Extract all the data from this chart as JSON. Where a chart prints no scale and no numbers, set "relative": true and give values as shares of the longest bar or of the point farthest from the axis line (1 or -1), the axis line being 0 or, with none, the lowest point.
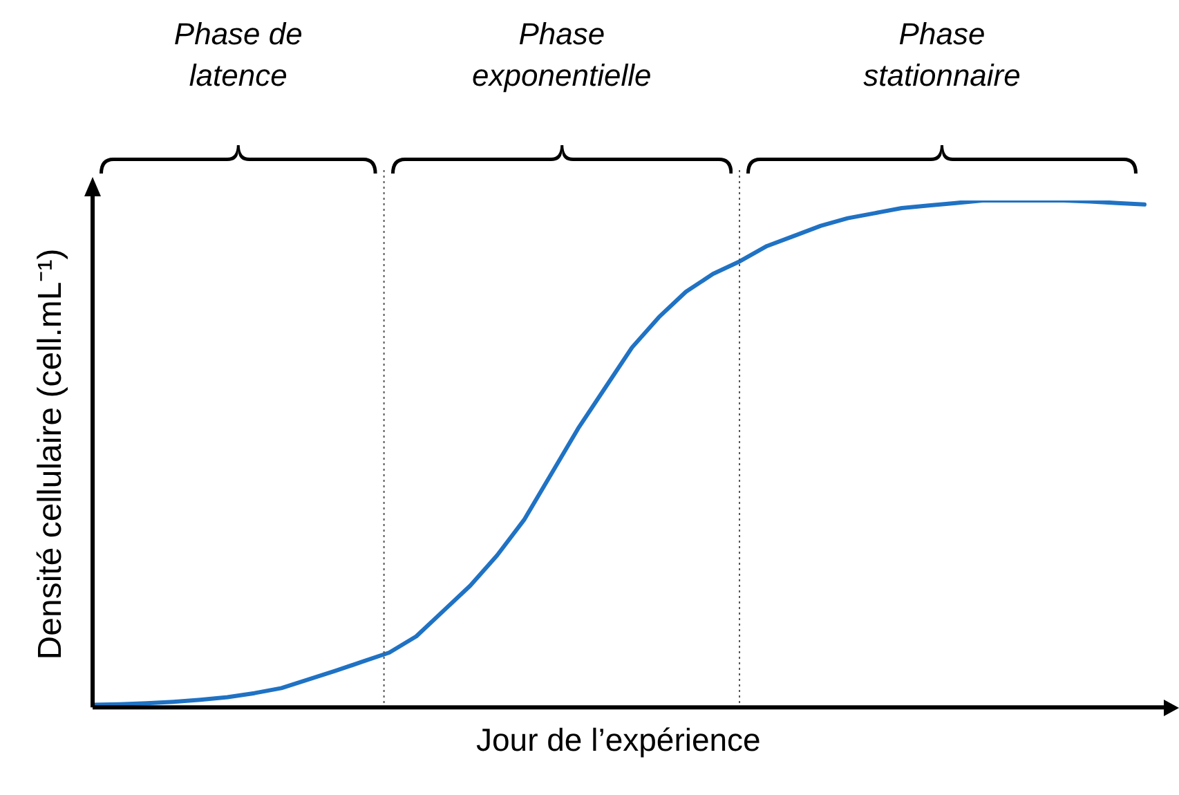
{
  "chart_data": {
    "type": "line",
    "relative": true,
    "xlabel": "Jour de l’expérience",
    "ylabel": "Densité cellulaire (cell.mL⁻¹)",
    "legend": false,
    "marker": "none",
    "categories": [
      null,
      null,
      null,
      null,
      null,
      null,
      null,
      null,
      null,
      null,
      null,
      null,
      null,
      null,
      null,
      null,
      null,
      null,
      null,
      null,
      null,
      null,
      null,
      null,
      null,
      null,
      null,
      null,
      null,
      null,
      null,
      null,
      null,
      null,
      null,
      null,
      null,
      null,
      null,
      null
    ],
    "series": [
      {
        "color": "#1f72c4",
        "values": [
          0.005,
          0.006,
          0.008,
          0.011,
          0.015,
          0.02,
          0.028,
          0.038,
          0.055,
          0.072,
          0.09,
          0.108,
          0.14,
          0.19,
          0.24,
          0.3,
          0.37,
          0.46,
          0.55,
          0.63,
          0.71,
          0.77,
          0.82,
          0.855,
          0.88,
          0.91,
          0.93,
          0.95,
          0.965,
          0.975,
          0.985,
          0.99,
          0.995,
          1,
          1,
          1,
          1,
          0.998,
          0.995,
          0.992
        ]
      }
    ],
    "annotations": [
      "Phase de\nlatence",
      "Phase\nexponentielle",
      "Phase\nstationnaire"
    ]
  }
}
